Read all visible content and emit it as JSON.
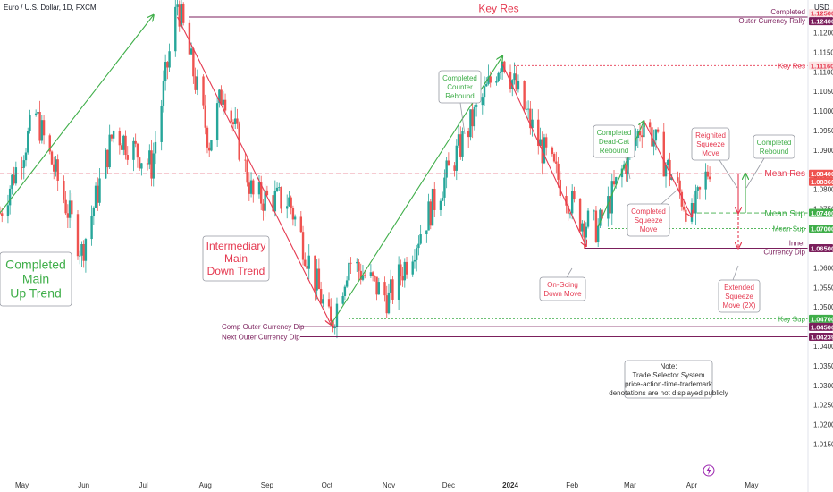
{
  "header": {
    "symbol": "Euro / U.S. Dollar, 1D, FXCM",
    "currency": "USD"
  },
  "colors": {
    "up": "#26a69a",
    "down": "#ef5350",
    "red": "#e53950",
    "green": "#3fae49",
    "purple": "#7b1f5c",
    "grey": "#9598a1"
  },
  "chart_data": {
    "type": "candlestick",
    "symbol": "Euro / U.S. Dollar",
    "timeframe": "1D",
    "ylim": [
      1.0085,
      1.1265
    ],
    "x_ticks": [
      "May",
      "Jun",
      "Jul",
      "Aug",
      "Sep",
      "Oct",
      "Nov",
      "Dec",
      "2024",
      "Feb",
      "Mar",
      "Apr",
      "May"
    ],
    "y_ticks": [
      "1.12500",
      "1.12400",
      "1.12000",
      "1.11500",
      "1.11160",
      "1.11000",
      "1.10500",
      "1.10000",
      "1.09500",
      "1.09000",
      "1.08400",
      "1.08360",
      "1.08000",
      "1.07500",
      "1.07400",
      "1.07000",
      "1.06500",
      "1.06000",
      "1.05500",
      "1.05000",
      "1.04700",
      "1.04500",
      "1.04239",
      "1.04000",
      "1.03500",
      "1.03000",
      "1.02500",
      "1.02000",
      "1.01500"
    ],
    "price_path": [
      {
        "date": "2023-04-20",
        "price": 1.074
      },
      {
        "date": "2023-05-08",
        "price": 1.099
      },
      {
        "date": "2023-05-31",
        "price": 1.064
      },
      {
        "date": "2023-06-16",
        "price": 1.095
      },
      {
        "date": "2023-07-05",
        "price": 1.086
      },
      {
        "date": "2023-07-18",
        "price": 1.1276
      },
      {
        "date": "2023-08-03",
        "price": 1.092
      },
      {
        "date": "2023-08-10",
        "price": 1.106
      },
      {
        "date": "2023-08-25",
        "price": 1.078
      },
      {
        "date": "2023-09-12",
        "price": 1.077
      },
      {
        "date": "2023-10-03",
        "price": 1.0448
      },
      {
        "date": "2023-10-12",
        "price": 1.062
      },
      {
        "date": "2023-11-01",
        "price": 1.052
      },
      {
        "date": "2023-12-28",
        "price": 1.114
      },
      {
        "date": "2024-01-15",
        "price": 1.092
      },
      {
        "date": "2024-02-05",
        "price": 1.0725
      },
      {
        "date": "2024-02-14",
        "price": 1.07
      },
      {
        "date": "2024-03-08",
        "price": 1.098
      },
      {
        "date": "2024-04-01",
        "price": 1.0726
      },
      {
        "date": "2024-04-10",
        "price": 1.086
      }
    ],
    "levels": [
      {
        "name": "Completed Outer Currency Rally",
        "value": 1.124,
        "labels": [
          "Completed",
          "Outer Currency Rally"
        ],
        "color": "#7b1f5c",
        "style": "solid"
      },
      {
        "name": "Key Res",
        "value": 1.125,
        "labels": [
          "Key Res"
        ],
        "color": "#e53950",
        "style": "dashed"
      },
      {
        "name": "Key Res 2",
        "value": 1.1116,
        "labels": [
          "Key Res"
        ],
        "color": "#e53950",
        "style": "dotted"
      },
      {
        "name": "Mean Res",
        "value": 1.084,
        "labels": [
          "Mean Res"
        ],
        "color": "#e53950",
        "style": "dashed"
      },
      {
        "name": "Mean Sup",
        "value": 1.074,
        "labels": [
          "Mean Sup"
        ],
        "color": "#3fae49",
        "style": "dashed"
      },
      {
        "name": "Mean Sup 2",
        "value": 1.07,
        "labels": [
          "Mean Sup"
        ],
        "color": "#3fae49",
        "style": "dotted"
      },
      {
        "name": "Inner Currency Dip",
        "value": 1.065,
        "labels": [
          "Inner",
          "Currency Dip"
        ],
        "color": "#7b1f5c",
        "style": "solid"
      },
      {
        "name": "Key Sup",
        "value": 1.047,
        "labels": [
          "Key Sup"
        ],
        "color": "#3fae49",
        "style": "dotted"
      },
      {
        "name": "Comp Outer Currency Dip",
        "value": 1.045,
        "labels": [
          "Comp Outer Currency Dip"
        ],
        "color": "#7b1f5c",
        "style": "solid"
      },
      {
        "name": "Next Outer Currency Dip",
        "value": 1.04239,
        "labels": [
          "Next Outer Currency Dip"
        ],
        "color": "#7b1f5c",
        "style": "solid"
      }
    ],
    "price_badges": [
      {
        "value": 1.125,
        "text": "1.12500",
        "bg": "#fbe4e4",
        "fg": "#e53950"
      },
      {
        "value": 1.124,
        "text": "1.12400",
        "bg": "#7b1f5c",
        "fg": "#ffffff"
      },
      {
        "value": 1.1116,
        "text": "1.11160",
        "bg": "#fbe4e4",
        "fg": "#e53950"
      },
      {
        "value": 1.084,
        "text": "1.08400",
        "bg": "#ef5350",
        "fg": "#ffffff"
      },
      {
        "value": 1.0836,
        "text": "1.08360",
        "bg": "#ef5350",
        "fg": "#ffffff"
      },
      {
        "value": 1.074,
        "text": "1.07400",
        "bg": "#3fae49",
        "fg": "#ffffff"
      },
      {
        "value": 1.07,
        "text": "1.07000",
        "bg": "#3fae49",
        "fg": "#ffffff"
      },
      {
        "value": 1.065,
        "text": "1.06500",
        "bg": "#7b1f5c",
        "fg": "#ffffff"
      },
      {
        "value": 1.047,
        "text": "1.04700",
        "bg": "#3fae49",
        "fg": "#ffffff"
      },
      {
        "value": 1.045,
        "text": "1.04500",
        "bg": "#7b1f5c",
        "fg": "#ffffff"
      },
      {
        "value": 1.04239,
        "text": "1.04239",
        "bg": "#7b1f5c",
        "fg": "#ffffff"
      }
    ],
    "trend_moves": [
      {
        "name": "Completed Main Up Trend",
        "from": {
          "date": "2023-04-20",
          "price": 1.074
        },
        "to": {
          "date": "2023-07-06",
          "price": 1.1245
        },
        "color": "#3fae49"
      },
      {
        "name": "Intermediary Main Down Trend",
        "from": {
          "date": "2023-07-18",
          "price": 1.124
        },
        "to": {
          "date": "2023-10-03",
          "price": 1.0455
        },
        "color": "#e53950"
      },
      {
        "name": "Completed Counter Rebound",
        "from": {
          "date": "2023-10-03",
          "price": 1.0455
        },
        "to": {
          "date": "2023-12-28",
          "price": 1.114
        },
        "color": "#3fae49"
      },
      {
        "name": "On-Going Down Move",
        "from": {
          "date": "2023-12-28",
          "price": 1.112
        },
        "to": {
          "date": "2024-02-08",
          "price": 1.0655
        },
        "color": "#e53950"
      },
      {
        "name": "Completed Dead-Cat Rebound",
        "from": {
          "date": "2024-02-14",
          "price": 1.0705
        },
        "to": {
          "date": "2024-03-08",
          "price": 1.0975
        },
        "color": "#3fae49"
      },
      {
        "name": "Completed Squeeze Move",
        "from": {
          "date": "2024-03-08",
          "price": 1.0975
        },
        "to": {
          "date": "2024-04-01",
          "price": 1.073
        },
        "color": "#e53950"
      },
      {
        "name": "Completed Rebound",
        "from": {
          "date": "2024-04-12",
          "price": 1.074
        },
        "to": {
          "date": "2024-04-12",
          "price": 1.084
        },
        "color": "#3fae49"
      },
      {
        "name": "Reignited Squeeze Move",
        "from": {
          "date": "2024-04-12",
          "price": 1.084
        },
        "to": {
          "date": "2024-04-12",
          "price": 1.074
        },
        "color": "#e53950"
      },
      {
        "name": "Extended Squeeze Move",
        "from": {
          "date": "2024-04-12",
          "price": 1.074
        },
        "to": {
          "date": "2024-04-12",
          "price": 1.065
        },
        "color": "#e53950"
      }
    ],
    "annotations": [
      {
        "id": "main-up-trend",
        "lines": [
          "Completed",
          "Main",
          "Up Trend"
        ],
        "color": "#3fae49"
      },
      {
        "id": "main-down-trend",
        "lines": [
          "Intermediary",
          "Main",
          "Down Trend"
        ],
        "color": "#e53950"
      },
      {
        "id": "counter-rebound",
        "lines": [
          "Completed",
          "Counter",
          "Rebound"
        ],
        "color": "#3fae49"
      },
      {
        "id": "dead-cat-rebound",
        "lines": [
          "Completed",
          "Dead-Cat",
          "Rebound"
        ],
        "color": "#3fae49"
      },
      {
        "id": "reignited-squeeze",
        "lines": [
          "Reignited",
          "Squeeze",
          "Move"
        ],
        "color": "#e53950"
      },
      {
        "id": "completed-rebound",
        "lines": [
          "Completed",
          "Rebound"
        ],
        "color": "#3fae49"
      },
      {
        "id": "squeeze-move",
        "lines": [
          "Completed",
          "Squeeze",
          "Move"
        ],
        "color": "#e53950"
      },
      {
        "id": "ongoing-down",
        "lines": [
          "On-Going",
          "Down Move"
        ],
        "color": "#e53950"
      },
      {
        "id": "extended-squeeze",
        "lines": [
          "Extended",
          "Squeeze",
          "Move (2X)"
        ],
        "color": "#e53950"
      },
      {
        "id": "note",
        "lines": [
          "Note:",
          "Trade Selector System",
          "price-action-time-trademark",
          "denotations are not displayed publicly"
        ],
        "color": "#333333"
      }
    ]
  }
}
